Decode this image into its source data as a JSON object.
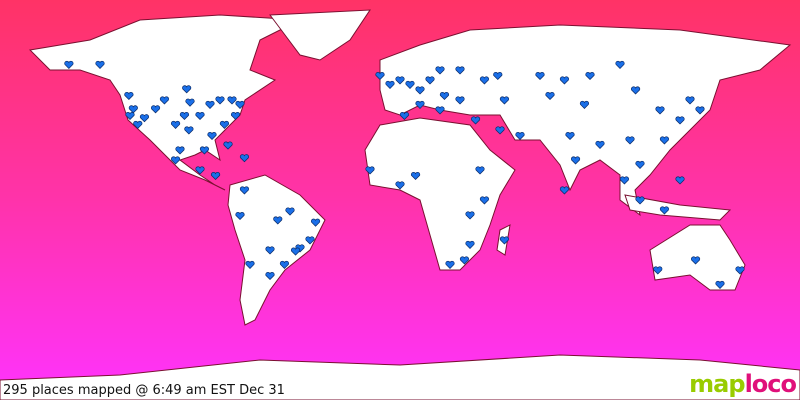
{
  "caption": "295 places mapped @ 6:49 am EST Dec 31",
  "logo": {
    "part1": "map",
    "part2": "loco"
  },
  "colors": {
    "ocean_top": "#ff3366",
    "ocean_bottom": "#ff33ff",
    "land": "#ffffff",
    "marker": "#1a6fe8"
  },
  "marker_icon": "heart-icon",
  "markers": [
    [
      -149,
      61
    ],
    [
      -135,
      61
    ],
    [
      -122,
      47
    ],
    [
      -120,
      41
    ],
    [
      -121.5,
      38
    ],
    [
      -118,
      34
    ],
    [
      -115,
      37
    ],
    [
      -110,
      41
    ],
    [
      -106,
      45
    ],
    [
      -96,
      50
    ],
    [
      -94.5,
      44
    ],
    [
      -97,
      38
    ],
    [
      -101,
      34
    ],
    [
      -95,
      31.5
    ],
    [
      -90,
      38
    ],
    [
      -85.5,
      43
    ],
    [
      -81,
      45
    ],
    [
      -75.6,
      45
    ],
    [
      -72,
      43
    ],
    [
      -74,
      38
    ],
    [
      -79,
      34
    ],
    [
      -84.6,
      29
    ],
    [
      -77.4,
      24.7
    ],
    [
      -88,
      22.5
    ],
    [
      -99,
      22.5
    ],
    [
      -101,
      18
    ],
    [
      -90,
      13.5
    ],
    [
      -83,
      11
    ],
    [
      -70,
      19
    ],
    [
      -70,
      4.5
    ],
    [
      -72,
      -7
    ],
    [
      -55,
      -9
    ],
    [
      -49.5,
      -5
    ],
    [
      -38,
      -10
    ],
    [
      -40.5,
      -18
    ],
    [
      -45,
      -21.6
    ],
    [
      -47,
      -23
    ],
    [
      -52,
      -29
    ],
    [
      -58.5,
      -22.5
    ],
    [
      -58.5,
      -34
    ],
    [
      -67.5,
      -29
    ],
    [
      -9,
      56
    ],
    [
      -4.5,
      52
    ],
    [
      0,
      54
    ],
    [
      4.5,
      52
    ],
    [
      9,
      49.5
    ],
    [
      13.5,
      54
    ],
    [
      18,
      58.5
    ],
    [
      27,
      58.5
    ],
    [
      20,
      47
    ],
    [
      9,
      43
    ],
    [
      2,
      38
    ],
    [
      18,
      40.5
    ],
    [
      27,
      45
    ],
    [
      34,
      36
    ],
    [
      38,
      54
    ],
    [
      44,
      56
    ],
    [
      47,
      45
    ],
    [
      54,
      29
    ],
    [
      45,
      31.5
    ],
    [
      -13.5,
      13.5
    ],
    [
      0,
      6.75
    ],
    [
      7,
      11
    ],
    [
      36,
      13.5
    ],
    [
      38,
      0
    ],
    [
      31.5,
      -6.75
    ],
    [
      31.5,
      -20
    ],
    [
      29,
      -27
    ],
    [
      22.5,
      -29
    ],
    [
      47,
      -18
    ],
    [
      63,
      56
    ],
    [
      74,
      54
    ],
    [
      85.5,
      56
    ],
    [
      99,
      61
    ],
    [
      67.5,
      47
    ],
    [
      83,
      43
    ],
    [
      106,
      49.5
    ],
    [
      76.5,
      29
    ],
    [
      79,
      18
    ],
    [
      74,
      4.5
    ],
    [
      90,
      25
    ],
    [
      103.5,
      27
    ],
    [
      108,
      16
    ],
    [
      119,
      27
    ],
    [
      126,
      36
    ],
    [
      135,
      40.5
    ],
    [
      130.5,
      45
    ],
    [
      117,
      40.5
    ],
    [
      101,
      9
    ],
    [
      108,
      0
    ],
    [
      119,
      -4.5
    ],
    [
      126,
      9
    ],
    [
      116,
      -31.5
    ],
    [
      133,
      -27
    ],
    [
      144,
      -38
    ],
    [
      153,
      -31.5
    ]
  ]
}
